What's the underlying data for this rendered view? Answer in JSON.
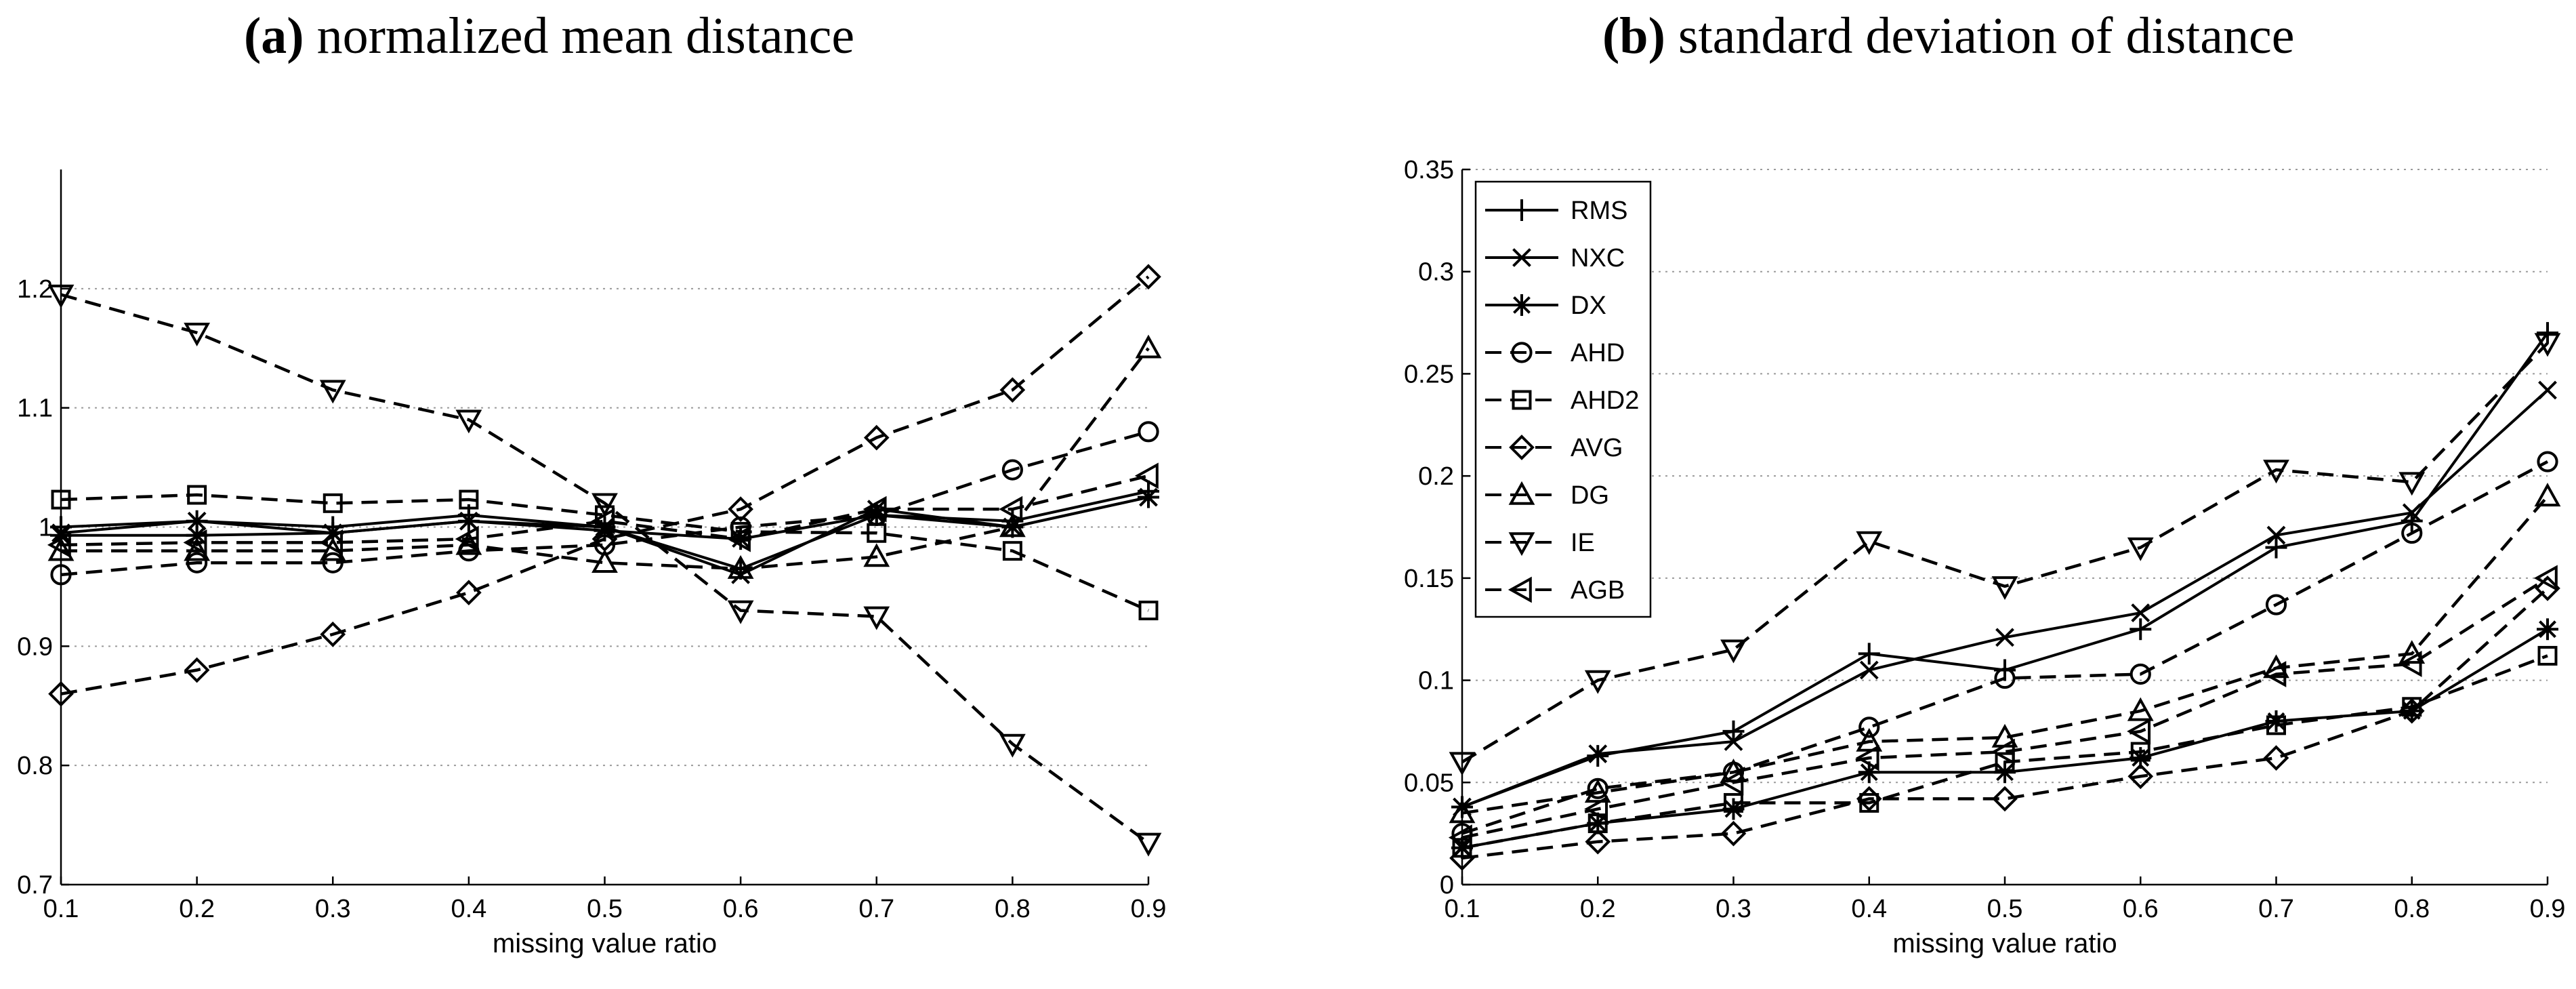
{
  "chart_data": [
    {
      "type": "line",
      "panel": "(a)",
      "title": "normalized mean distance",
      "xlabel": "missing value ratio",
      "ylabel": "",
      "x": [
        0.1,
        0.2,
        0.3,
        0.4,
        0.5,
        0.6,
        0.7,
        0.8,
        0.9
      ],
      "xticks": [
        "0.1",
        "0.2",
        "0.3",
        "0.4",
        "0.5",
        "0.6",
        "0.7",
        "0.8",
        "0.9"
      ],
      "xlim": [
        0.1,
        0.9
      ],
      "ylim": [
        0.7,
        1.3
      ],
      "yticks": [
        "0.7",
        "0.8",
        "0.9",
        "1",
        "1.1",
        "1.2"
      ],
      "ytick_values": [
        0.7,
        0.8,
        0.9,
        1.0,
        1.1,
        1.2
      ],
      "grid": "horizontal dotted",
      "series": [
        {
          "name": "RMS",
          "dash": "solid",
          "marker": "plus",
          "values": [
            1.0,
            1.005,
            1.0,
            1.01,
            1.0,
            0.965,
            1.01,
            1.005,
            1.03
          ]
        },
        {
          "name": "NXC",
          "dash": "solid",
          "marker": "x",
          "values": [
            0.995,
            1.005,
            0.995,
            1.005,
            1.0,
            0.96,
            1.015,
            1.0,
            1.025
          ]
        },
        {
          "name": "DX",
          "dash": "solid",
          "marker": "star",
          "values": [
            0.993,
            0.993,
            0.995,
            1.005,
            0.997,
            0.99,
            1.01,
            1.0,
            1.025
          ]
        },
        {
          "name": "AHD",
          "dash": "dashed",
          "marker": "circle",
          "values": [
            0.96,
            0.97,
            0.97,
            0.98,
            0.985,
            1.0,
            1.01,
            1.048,
            1.08
          ]
        },
        {
          "name": "AHD2",
          "dash": "dashed",
          "marker": "square",
          "values": [
            1.023,
            1.027,
            1.02,
            1.023,
            1.01,
            0.996,
            0.995,
            0.98,
            0.93
          ]
        },
        {
          "name": "AVG",
          "dash": "dashed",
          "marker": "diamond",
          "values": [
            0.86,
            0.88,
            0.91,
            0.945,
            0.99,
            1.015,
            1.075,
            1.115,
            1.21
          ]
        },
        {
          "name": "DG",
          "dash": "dashed",
          "marker": "triangle-up",
          "values": [
            0.98,
            0.98,
            0.98,
            0.985,
            0.97,
            0.965,
            0.975,
            1.0,
            1.15
          ]
        },
        {
          "name": "IE",
          "dash": "dashed",
          "marker": "triangle-down",
          "values": [
            1.195,
            1.163,
            1.115,
            1.09,
            1.02,
            0.93,
            0.925,
            0.818,
            0.735
          ]
        },
        {
          "name": "AGB",
          "dash": "dashed",
          "marker": "triangle-left",
          "values": [
            0.985,
            0.987,
            0.987,
            0.99,
            1.005,
            0.99,
            1.015,
            1.015,
            1.043
          ]
        }
      ]
    },
    {
      "type": "line",
      "panel": "(b)",
      "title": "standard deviation of distance",
      "xlabel": "missing value ratio",
      "ylabel": "",
      "x": [
        0.1,
        0.2,
        0.3,
        0.4,
        0.5,
        0.6,
        0.7,
        0.8,
        0.9
      ],
      "xticks": [
        "0.1",
        "0.2",
        "0.3",
        "0.4",
        "0.5",
        "0.6",
        "0.7",
        "0.8",
        "0.9"
      ],
      "xlim": [
        0.1,
        0.9
      ],
      "ylim": [
        0,
        0.35
      ],
      "yticks": [
        "0",
        "0.05",
        "0.1",
        "0.15",
        "0.2",
        "0.25",
        "0.3",
        "0.35"
      ],
      "ytick_values": [
        0,
        0.05,
        0.1,
        0.15,
        0.2,
        0.25,
        0.3,
        0.35
      ],
      "grid": "horizontal dotted",
      "legend_position": "top-left",
      "legend": [
        "RMS",
        "NXC",
        "DX",
        "AHD",
        "AHD2",
        "AVG",
        "DG",
        "IE",
        "AGB"
      ],
      "series": [
        {
          "name": "RMS",
          "dash": "solid",
          "marker": "plus",
          "values": [
            0.038,
            0.063,
            0.075,
            0.113,
            0.105,
            0.125,
            0.165,
            0.178,
            0.27
          ]
        },
        {
          "name": "NXC",
          "dash": "solid",
          "marker": "x",
          "values": [
            0.038,
            0.064,
            0.07,
            0.105,
            0.121,
            0.133,
            0.171,
            0.182,
            0.242
          ]
        },
        {
          "name": "DX",
          "dash": "solid",
          "marker": "star",
          "values": [
            0.018,
            0.03,
            0.037,
            0.055,
            0.055,
            0.062,
            0.08,
            0.085,
            0.125
          ]
        },
        {
          "name": "AHD",
          "dash": "dashed",
          "marker": "circle",
          "values": [
            0.025,
            0.047,
            0.055,
            0.077,
            0.101,
            0.103,
            0.137,
            0.172,
            0.207
          ]
        },
        {
          "name": "AHD2",
          "dash": "dashed",
          "marker": "square",
          "values": [
            0.018,
            0.03,
            0.04,
            0.04,
            0.06,
            0.065,
            0.078,
            0.087,
            0.112
          ]
        },
        {
          "name": "AVG",
          "dash": "dashed",
          "marker": "diamond",
          "values": [
            0.013,
            0.021,
            0.025,
            0.042,
            0.042,
            0.053,
            0.062,
            0.085,
            0.145
          ]
        },
        {
          "name": "DG",
          "dash": "dashed",
          "marker": "triangle-up",
          "values": [
            0.035,
            0.045,
            0.055,
            0.07,
            0.072,
            0.085,
            0.106,
            0.113,
            0.19
          ]
        },
        {
          "name": "IE",
          "dash": "dashed",
          "marker": "triangle-down",
          "values": [
            0.06,
            0.1,
            0.115,
            0.168,
            0.146,
            0.165,
            0.203,
            0.197,
            0.265
          ]
        },
        {
          "name": "AGB",
          "dash": "dashed",
          "marker": "triangle-left",
          "values": [
            0.023,
            0.037,
            0.05,
            0.062,
            0.065,
            0.075,
            0.103,
            0.108,
            0.15
          ]
        }
      ]
    }
  ]
}
